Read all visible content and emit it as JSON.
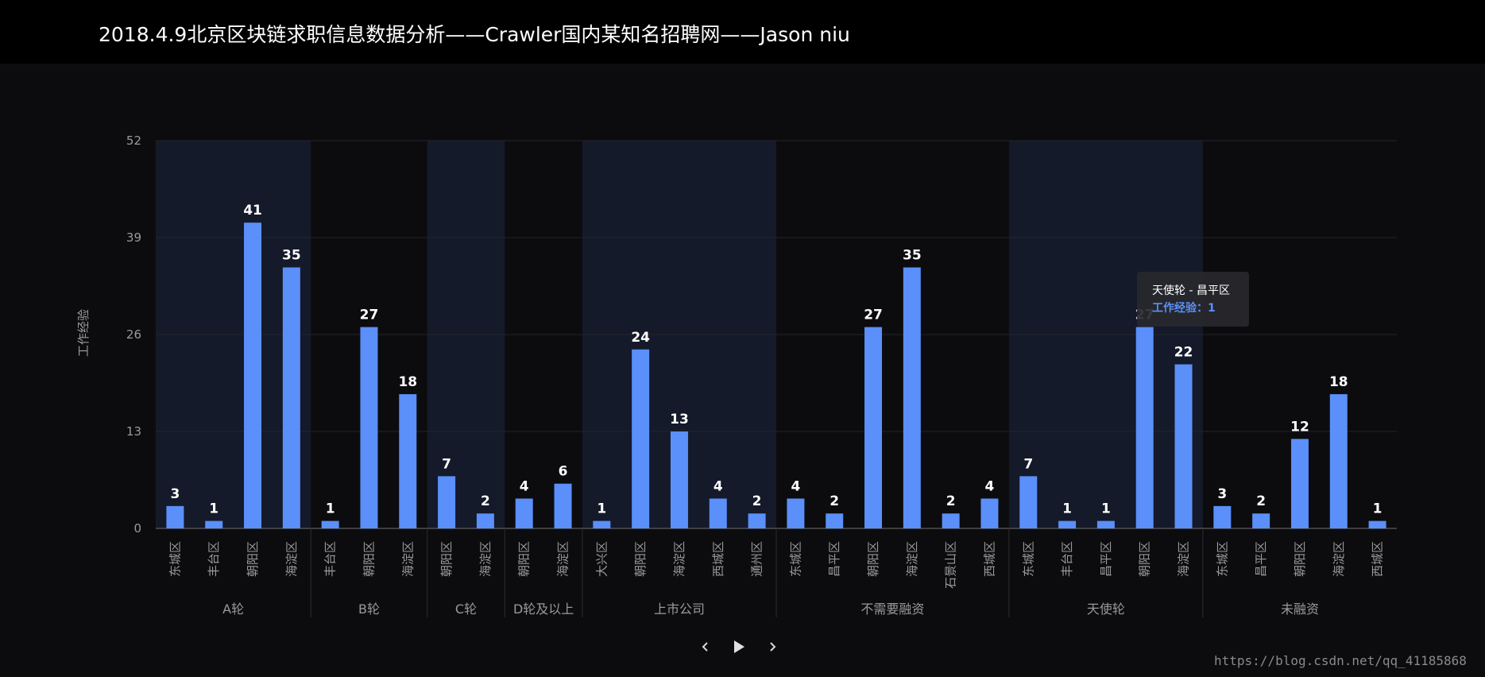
{
  "header": {
    "title": "2018.4.9北京区块链求职信息数据分析——Crawler国内某知名招聘网——Jason niu"
  },
  "colors": {
    "bar": "#5b8ff9",
    "band": "#141a2a",
    "grid": "#24242a",
    "axis_text": "#9a9a9a",
    "label": "#ffffff"
  },
  "chart_data": {
    "type": "bar",
    "ylabel": "工作经验",
    "ylim": [
      0,
      52
    ],
    "yticks": [
      0,
      13,
      26,
      39,
      52
    ],
    "grid": true,
    "legend": "none",
    "groups": [
      {
        "name": "A轮",
        "items": [
          {
            "x": "东城区",
            "y": 3
          },
          {
            "x": "丰台区",
            "y": 1
          },
          {
            "x": "朝阳区",
            "y": 41
          },
          {
            "x": "海淀区",
            "y": 35
          }
        ]
      },
      {
        "name": "B轮",
        "items": [
          {
            "x": "丰台区",
            "y": 1
          },
          {
            "x": "朝阳区",
            "y": 27
          },
          {
            "x": "海淀区",
            "y": 18
          }
        ]
      },
      {
        "name": "C轮",
        "items": [
          {
            "x": "朝阳区",
            "y": 7
          },
          {
            "x": "海淀区",
            "y": 2
          }
        ]
      },
      {
        "name": "D轮及以上",
        "items": [
          {
            "x": "朝阳区",
            "y": 4
          },
          {
            "x": "海淀区",
            "y": 6
          }
        ]
      },
      {
        "name": "上市公司",
        "items": [
          {
            "x": "大兴区",
            "y": 1
          },
          {
            "x": "朝阳区",
            "y": 24
          },
          {
            "x": "海淀区",
            "y": 13
          },
          {
            "x": "西城区",
            "y": 4
          },
          {
            "x": "通州区",
            "y": 2
          }
        ]
      },
      {
        "name": "不需要融资",
        "items": [
          {
            "x": "东城区",
            "y": 4
          },
          {
            "x": "昌平区",
            "y": 2
          },
          {
            "x": "朝阳区",
            "y": 27
          },
          {
            "x": "海淀区",
            "y": 35
          },
          {
            "x": "石景山区",
            "y": 2
          },
          {
            "x": "西城区",
            "y": 4
          }
        ]
      },
      {
        "name": "天使轮",
        "items": [
          {
            "x": "东城区",
            "y": 7
          },
          {
            "x": "丰台区",
            "y": 1
          },
          {
            "x": "昌平区",
            "y": 1
          },
          {
            "x": "朝阳区",
            "y": 27
          },
          {
            "x": "海淀区",
            "y": 22
          }
        ]
      },
      {
        "name": "未融资",
        "items": [
          {
            "x": "东城区",
            "y": 3
          },
          {
            "x": "昌平区",
            "y": 2
          },
          {
            "x": "朝阳区",
            "y": 12
          },
          {
            "x": "海淀区",
            "y": 18
          },
          {
            "x": "西城区",
            "y": 1
          }
        ]
      }
    ],
    "tooltip": {
      "title": "天使轮 - 昌平区",
      "line": "工作经验：1"
    }
  },
  "controls": {
    "prev_icon": "chevron-left-icon",
    "play_icon": "play-icon",
    "next_icon": "chevron-right-icon"
  },
  "watermark": "https://blog.csdn.net/qq_41185868"
}
